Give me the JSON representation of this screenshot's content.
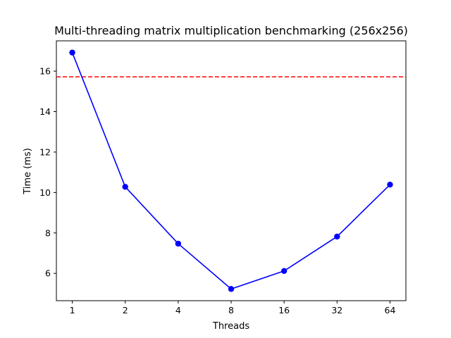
{
  "chart_data": {
    "type": "line",
    "title": "Multi-threading matrix multiplication benchmarking (256x256)",
    "xlabel": "Threads",
    "ylabel": "Time (ms)",
    "categories": [
      "1",
      "2",
      "4",
      "8",
      "16",
      "32",
      "64"
    ],
    "series": [
      {
        "values": [
          16.92,
          10.28,
          7.47,
          5.23,
          6.12,
          7.82,
          10.39
        ],
        "color": "#0000ff",
        "marker": "circle"
      }
    ],
    "reference_line": {
      "y": 15.72,
      "color": "#ff0000",
      "style": "dashed"
    },
    "ylim": [
      4.65,
      17.5
    ],
    "yticks": [
      6,
      8,
      10,
      12,
      14,
      16
    ],
    "grid": false
  }
}
